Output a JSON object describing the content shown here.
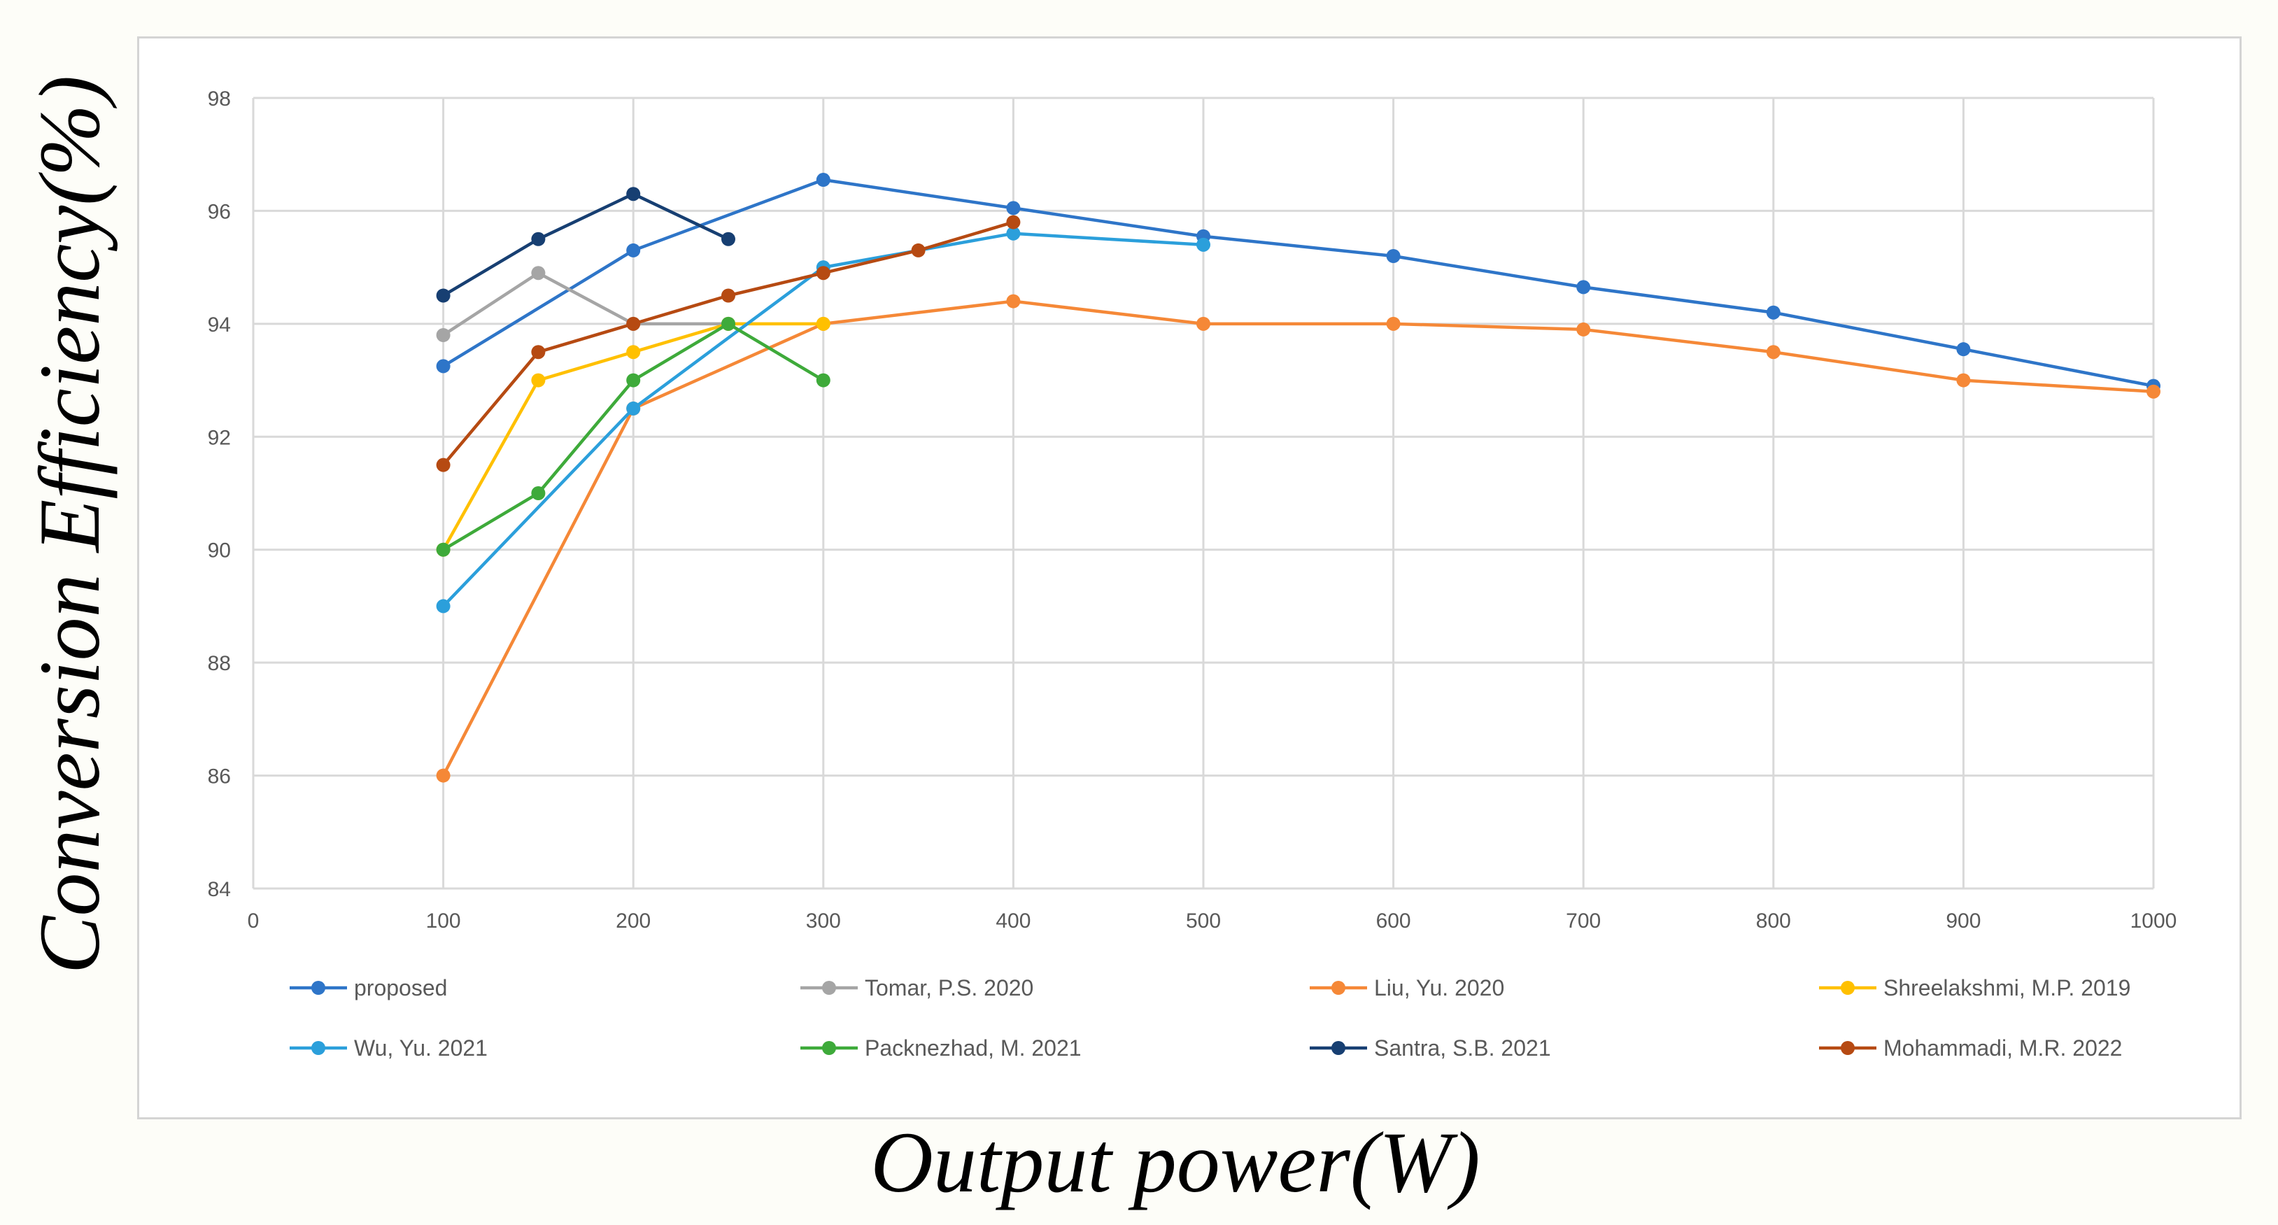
{
  "chart_data": {
    "type": "line",
    "title": "",
    "xlabel": "Output power(W)",
    "ylabel": "Conversion Efficiency(%)",
    "xlim": [
      0,
      1000
    ],
    "ylim": [
      84,
      98
    ],
    "x_ticks": [
      "0",
      "100",
      "200",
      "300",
      "400",
      "500",
      "600",
      "700",
      "800",
      "900",
      "1000"
    ],
    "y_ticks": [
      "84",
      "86",
      "88",
      "90",
      "92",
      "94",
      "96",
      "98"
    ],
    "grid": "vertical and horizontal",
    "legend_position": "bottom",
    "series": [
      {
        "name": "proposed",
        "color": "#2e75c8",
        "x": [
          100,
          200,
          300,
          400,
          500,
          600,
          700,
          800,
          900,
          1000
        ],
        "values": [
          93.25,
          95.3,
          96.55,
          96.05,
          95.55,
          95.2,
          94.65,
          94.2,
          93.55,
          92.9
        ]
      },
      {
        "name": "Tomar, P.S. 2020",
        "color": "#a5a5a5",
        "x": [
          100,
          150,
          200,
          250
        ],
        "values": [
          93.8,
          94.9,
          94.0,
          94.0
        ]
      },
      {
        "name": "Liu, Yu. 2020",
        "color": "#f58837",
        "x": [
          100,
          200,
          300,
          400,
          500,
          600,
          700,
          800,
          900,
          1000
        ],
        "values": [
          86.0,
          92.5,
          94.0,
          94.4,
          94.0,
          94.0,
          93.9,
          93.5,
          93.0,
          92.8
        ]
      },
      {
        "name": "Shreelakshmi, M.P. 2019",
        "color": "#ffc000",
        "x": [
          100,
          150,
          200,
          250,
          300
        ],
        "values": [
          90.0,
          93.0,
          93.5,
          94.0,
          94.0
        ]
      },
      {
        "name": "Wu, Yu. 2021",
        "color": "#2b9fdb",
        "x": [
          100,
          200,
          300,
          400,
          500
        ],
        "values": [
          89.0,
          92.5,
          95.0,
          95.6,
          95.4
        ]
      },
      {
        "name": "Packnezhad, M. 2021",
        "color": "#3eaa3a",
        "x": [
          100,
          150,
          200,
          250,
          300
        ],
        "values": [
          90.0,
          91.0,
          93.0,
          94.0,
          93.0
        ]
      },
      {
        "name": "Santra, S.B. 2021",
        "color": "#173f72",
        "x": [
          100,
          150,
          200,
          250
        ],
        "values": [
          94.5,
          95.5,
          96.3,
          95.5
        ]
      },
      {
        "name": "Mohammadi, M.R. 2022",
        "color": "#b64a12",
        "x": [
          100,
          150,
          200,
          250,
          300,
          350,
          400
        ],
        "values": [
          91.5,
          93.5,
          94.0,
          94.5,
          94.9,
          95.3,
          95.8
        ]
      }
    ]
  }
}
